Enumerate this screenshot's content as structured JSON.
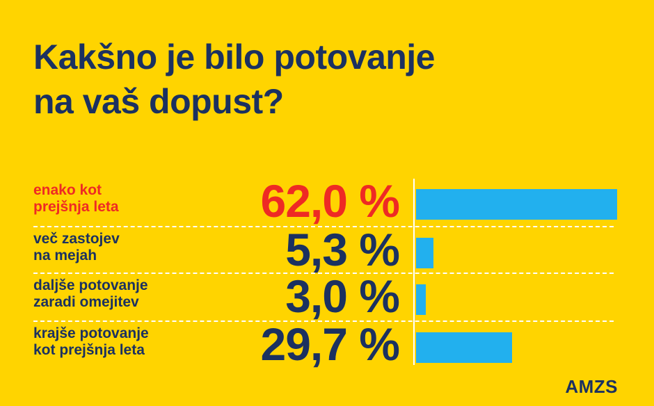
{
  "header": {
    "title_line1": "Kakšno je bilo potovanje",
    "title_line2": "na vaš dopust?"
  },
  "rows": [
    {
      "label_line1": "enako kot",
      "label_line2": "prejšnja leta",
      "value_text": "62,0 %"
    },
    {
      "label_line1": "več zastojev",
      "label_line2": "na mejah",
      "value_text": "5,3 %"
    },
    {
      "label_line1": "daljše potovanje",
      "label_line2": "zaradi omejitev",
      "value_text": "3,0 %"
    },
    {
      "label_line1": "krajše potovanje",
      "label_line2": "kot prejšnja leta",
      "value_text": "29,7 %"
    }
  ],
  "chart_data": {
    "type": "bar",
    "orientation": "horizontal",
    "title": "Kakšno je bilo potovanje na vaš dopust?",
    "categories": [
      "enako kot prejšnja leta",
      "več zastojev na mejah",
      "daljše potovanje zaradi omejitev",
      "krajše potovanje kot prejšnja leta"
    ],
    "values": [
      62.0,
      5.3,
      3.0,
      29.7
    ],
    "unit": "%",
    "xlim": [
      0,
      62.0
    ],
    "highlight_index": 0
  },
  "colors": {
    "background": "#FFD400",
    "text": "#1B3160",
    "highlight": "#EE2A24",
    "bar": "#22B0EE",
    "divider": "#FFFFFF"
  },
  "brand": {
    "logo_text": "AMZS"
  }
}
